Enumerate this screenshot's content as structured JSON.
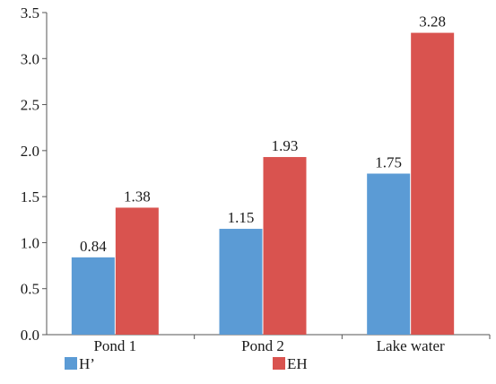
{
  "chart_data": {
    "type": "bar",
    "categories": [
      "Pond 1",
      "Pond 2",
      "Lake water"
    ],
    "series": [
      {
        "name": "H’",
        "values": [
          0.84,
          1.15,
          1.75
        ],
        "color": "#5b9bd5",
        "labels": [
          "0.84",
          "1.15",
          "1.75"
        ]
      },
      {
        "name": "EH",
        "values": [
          1.38,
          1.93,
          3.28
        ],
        "color": "#d9534f",
        "labels": [
          "1.38",
          "1.93",
          "3.28"
        ]
      }
    ],
    "ylim": [
      0,
      3.5
    ],
    "yticks": [
      "0.0",
      "0.5",
      "1.0",
      "1.5",
      "2.0",
      "2.5",
      "3.0",
      "3.5"
    ],
    "grid": false,
    "legend_position": "bottom"
  }
}
